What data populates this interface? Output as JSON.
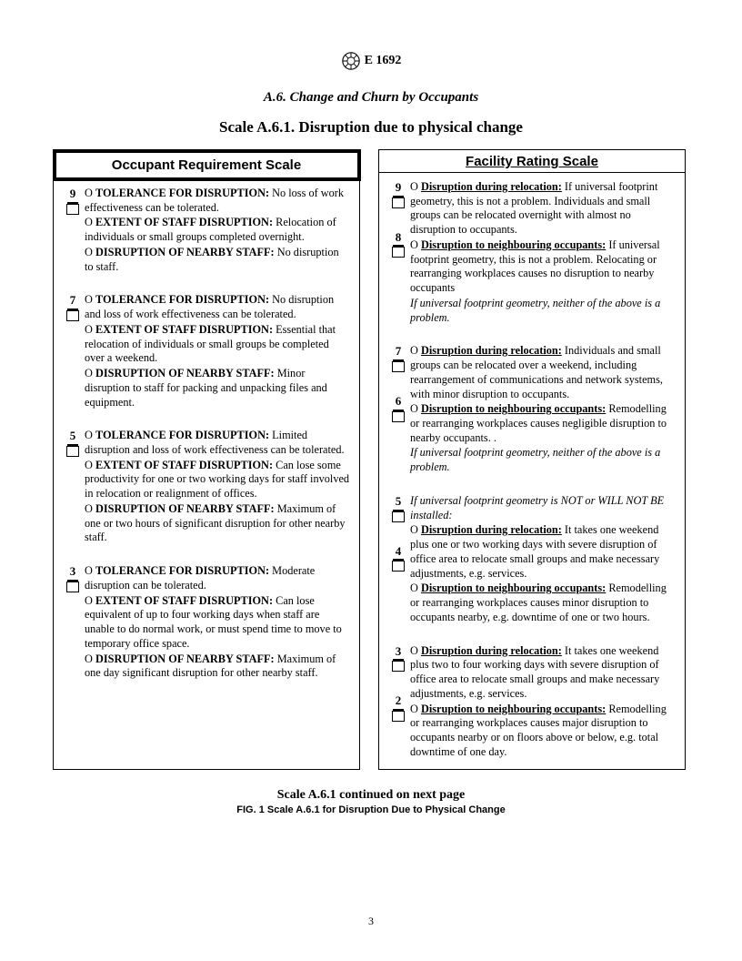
{
  "header": {
    "designation": "E 1692",
    "section": "A.6.  Change and Churn by Occupants",
    "scale": "Scale A.6.1.  Disruption due to physical change"
  },
  "left": {
    "title": "Occupant Requirement Scale",
    "items": [
      {
        "score": "9",
        "lines": [
          {
            "type": "p",
            "runs": [
              {
                "t": "O ",
                "cls": ""
              },
              {
                "t": "TOLERANCE FOR DISRUPTION:",
                "cls": "b"
              },
              {
                "t": " No loss of work effectiveness can be tolerated.",
                "cls": ""
              }
            ]
          },
          {
            "type": "p",
            "runs": [
              {
                "t": "O ",
                "cls": ""
              },
              {
                "t": "EXTENT OF STAFF DISRUPTION:",
                "cls": "b"
              },
              {
                "t": " Relocation of individuals or small groups completed overnight.",
                "cls": ""
              }
            ]
          },
          {
            "type": "p",
            "runs": [
              {
                "t": "O ",
                "cls": ""
              },
              {
                "t": "DISRUPTION OF NEARBY STAFF:",
                "cls": "b"
              },
              {
                "t": " No disruption to staff.",
                "cls": ""
              }
            ]
          }
        ]
      },
      {
        "score": "7",
        "lines": [
          {
            "type": "p",
            "runs": [
              {
                "t": "O ",
                "cls": ""
              },
              {
                "t": "TOLERANCE FOR DISRUPTION:",
                "cls": "b"
              },
              {
                "t": " No disruption and loss of work effectiveness can be tolerated.",
                "cls": ""
              }
            ]
          },
          {
            "type": "p",
            "runs": [
              {
                "t": "O ",
                "cls": ""
              },
              {
                "t": "EXTENT OF STAFF DISRUPTION:",
                "cls": "b"
              },
              {
                "t": " Essential that relocation of individuals or small groups be completed over a weekend.",
                "cls": ""
              }
            ]
          },
          {
            "type": "p",
            "runs": [
              {
                "t": "O ",
                "cls": ""
              },
              {
                "t": "DISRUPTION OF NEARBY STAFF:",
                "cls": "b"
              },
              {
                "t": " Minor disruption to staff for packing and unpacking files and equipment.",
                "cls": ""
              }
            ]
          }
        ]
      },
      {
        "score": "5",
        "lines": [
          {
            "type": "p",
            "runs": [
              {
                "t": "O ",
                "cls": ""
              },
              {
                "t": "TOLERANCE FOR DISRUPTION:",
                "cls": "b"
              },
              {
                "t": " Limited disruption and loss of work effectiveness can be tolerated.",
                "cls": ""
              }
            ]
          },
          {
            "type": "p",
            "runs": [
              {
                "t": "O ",
                "cls": ""
              },
              {
                "t": "EXTENT OF STAFF DISRUPTION:",
                "cls": "b"
              },
              {
                "t": " Can lose some productivity for one or two working days for staff involved in relocation or realignment of offices.",
                "cls": ""
              }
            ]
          },
          {
            "type": "p",
            "runs": [
              {
                "t": "O ",
                "cls": ""
              },
              {
                "t": "DISRUPTION OF NEARBY STAFF:",
                "cls": "b"
              },
              {
                "t": " Maximum of one or two hours of significant disruption for other nearby staff.",
                "cls": ""
              }
            ]
          }
        ]
      },
      {
        "score": "3",
        "lines": [
          {
            "type": "p",
            "runs": [
              {
                "t": "O ",
                "cls": ""
              },
              {
                "t": "TOLERANCE FOR DISRUPTION:",
                "cls": "b"
              },
              {
                "t": " Moderate disruption can be tolerated.",
                "cls": ""
              }
            ]
          },
          {
            "type": "p",
            "runs": [
              {
                "t": "O ",
                "cls": ""
              },
              {
                "t": "EXTENT OF STAFF DISRUPTION:",
                "cls": "b"
              },
              {
                "t": " Can lose equivalent of up to four working days when staff are unable to do normal work, or must spend time to move to temporary office space.",
                "cls": ""
              }
            ]
          },
          {
            "type": "p",
            "runs": [
              {
                "t": "O ",
                "cls": ""
              },
              {
                "t": "DISRUPTION OF NEARBY STAFF:",
                "cls": "b"
              },
              {
                "t": " Maximum of one day significant disruption for other nearby staff.",
                "cls": ""
              }
            ]
          }
        ]
      }
    ]
  },
  "right": {
    "title": "Facility Rating Scale",
    "items": [
      {
        "scores": [
          "9",
          "8"
        ],
        "lines": [
          {
            "type": "p",
            "runs": [
              {
                "t": "O ",
                "cls": ""
              },
              {
                "t": "Disruption during relocation:",
                "cls": "b u"
              },
              {
                "t": " If universal footprint geometry, this is not a problem. Individuals and small groups can be relocated overnight with almost no disruption to occupants.",
                "cls": ""
              }
            ]
          },
          {
            "type": "p",
            "runs": [
              {
                "t": "O ",
                "cls": ""
              },
              {
                "t": "Disruption to neighbouring occupants:",
                "cls": "b u"
              },
              {
                "t": " If universal footprint geometry, this is not a problem. Relocating or rearranging workplaces causes no disruption to nearby occupants",
                "cls": ""
              }
            ]
          },
          {
            "type": "p",
            "runs": [
              {
                "t": "If universal footprint geometry, neither of the above is a problem.",
                "cls": "it"
              }
            ]
          }
        ]
      },
      {
        "scores": [
          "7",
          "6"
        ],
        "lines": [
          {
            "type": "p",
            "runs": [
              {
                "t": "O ",
                "cls": ""
              },
              {
                "t": "Disruption during relocation:",
                "cls": "b u"
              },
              {
                "t": " Individuals and small groups can be relocated over a weekend, including rearrangement of communications and network systems, with minor disruption to occupants.",
                "cls": ""
              }
            ]
          },
          {
            "type": "p",
            "runs": [
              {
                "t": "O ",
                "cls": ""
              },
              {
                "t": "Disruption to neighbouring occupants:",
                "cls": "b u"
              },
              {
                "t": " Remodelling or rearranging workplaces causes negligible disruption to nearby occupants. .",
                "cls": ""
              }
            ]
          },
          {
            "type": "p",
            "runs": [
              {
                "t": "If universal footprint geometry, neither of the above is a problem.",
                "cls": "it"
              }
            ]
          }
        ]
      },
      {
        "scores": [
          "5",
          "4"
        ],
        "lines": [
          {
            "type": "p",
            "runs": [
              {
                "t": "If universal footprint geometry is NOT or WILL NOT BE installed:",
                "cls": "it"
              }
            ]
          },
          {
            "type": "p",
            "runs": [
              {
                "t": "O ",
                "cls": ""
              },
              {
                "t": "Disruption during relocation:",
                "cls": "b u"
              },
              {
                "t": " It takes one weekend plus one or two working days with severe disruption of office area to relocate small groups and make necessary adjustments, e.g. services.",
                "cls": ""
              }
            ]
          },
          {
            "type": "p",
            "runs": [
              {
                "t": "O ",
                "cls": ""
              },
              {
                "t": "Disruption to neighbouring occupants:",
                "cls": "b u"
              },
              {
                "t": " Remodelling or rearranging workplaces causes minor disruption to occupants nearby, e.g. downtime of one or two hours.",
                "cls": ""
              }
            ]
          }
        ]
      },
      {
        "scores": [
          "3",
          "2"
        ],
        "lines": [
          {
            "type": "p",
            "runs": [
              {
                "t": "O ",
                "cls": ""
              },
              {
                "t": "Disruption during relocation:",
                "cls": "b u"
              },
              {
                "t": " It takes one weekend plus two to four working days with severe disruption of office area to relocate small groups and make necessary adjustments, e.g. services.",
                "cls": ""
              }
            ]
          },
          {
            "type": "p",
            "runs": [
              {
                "t": "O ",
                "cls": ""
              },
              {
                "t": "Disruption to neighbouring occupants:",
                "cls": "b u"
              },
              {
                "t": " Remodelling or rearranging workplaces causes major disruption to occupants nearby or on floors above or below, e.g. total downtime of one day.",
                "cls": ""
              }
            ]
          }
        ]
      }
    ]
  },
  "footer": {
    "continued": "Scale A.6.1 continued on next page",
    "caption": "FIG. 1 Scale A.6.1 for Disruption Due to Physical Change",
    "page": "3"
  }
}
